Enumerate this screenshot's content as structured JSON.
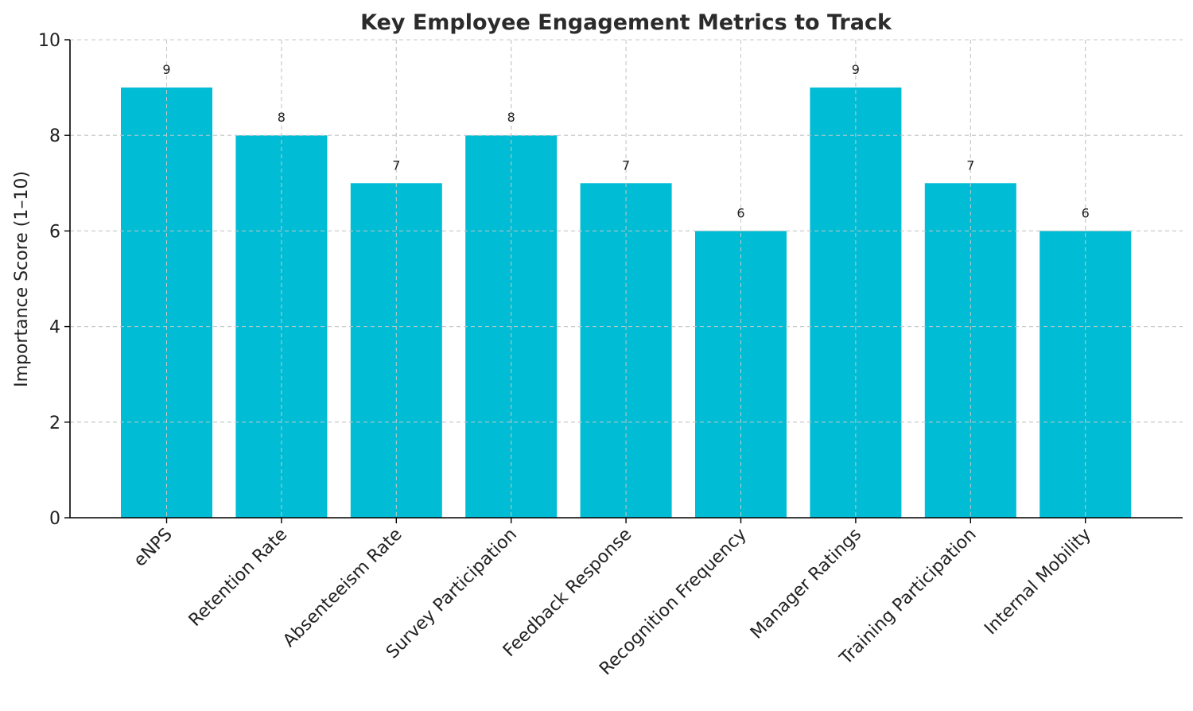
{
  "chart_data": {
    "type": "bar",
    "title": "Key Employee Engagement Metrics to Track",
    "xlabel": "",
    "ylabel": "Importance Score (1–10)",
    "categories": [
      "eNPS",
      "Retention Rate",
      "Absenteeism Rate",
      "Survey Participation",
      "Feedback Response",
      "Recognition Frequency",
      "Manager Ratings",
      "Training Participation",
      "Internal Mobility"
    ],
    "values": [
      9,
      8,
      7,
      8,
      7,
      6,
      9,
      7,
      6
    ],
    "ylim": [
      0,
      10
    ],
    "yticks": [
      0,
      2,
      4,
      6,
      8,
      10
    ],
    "grid": true,
    "bar_color": "#00BCD4",
    "data_labels": true
  }
}
